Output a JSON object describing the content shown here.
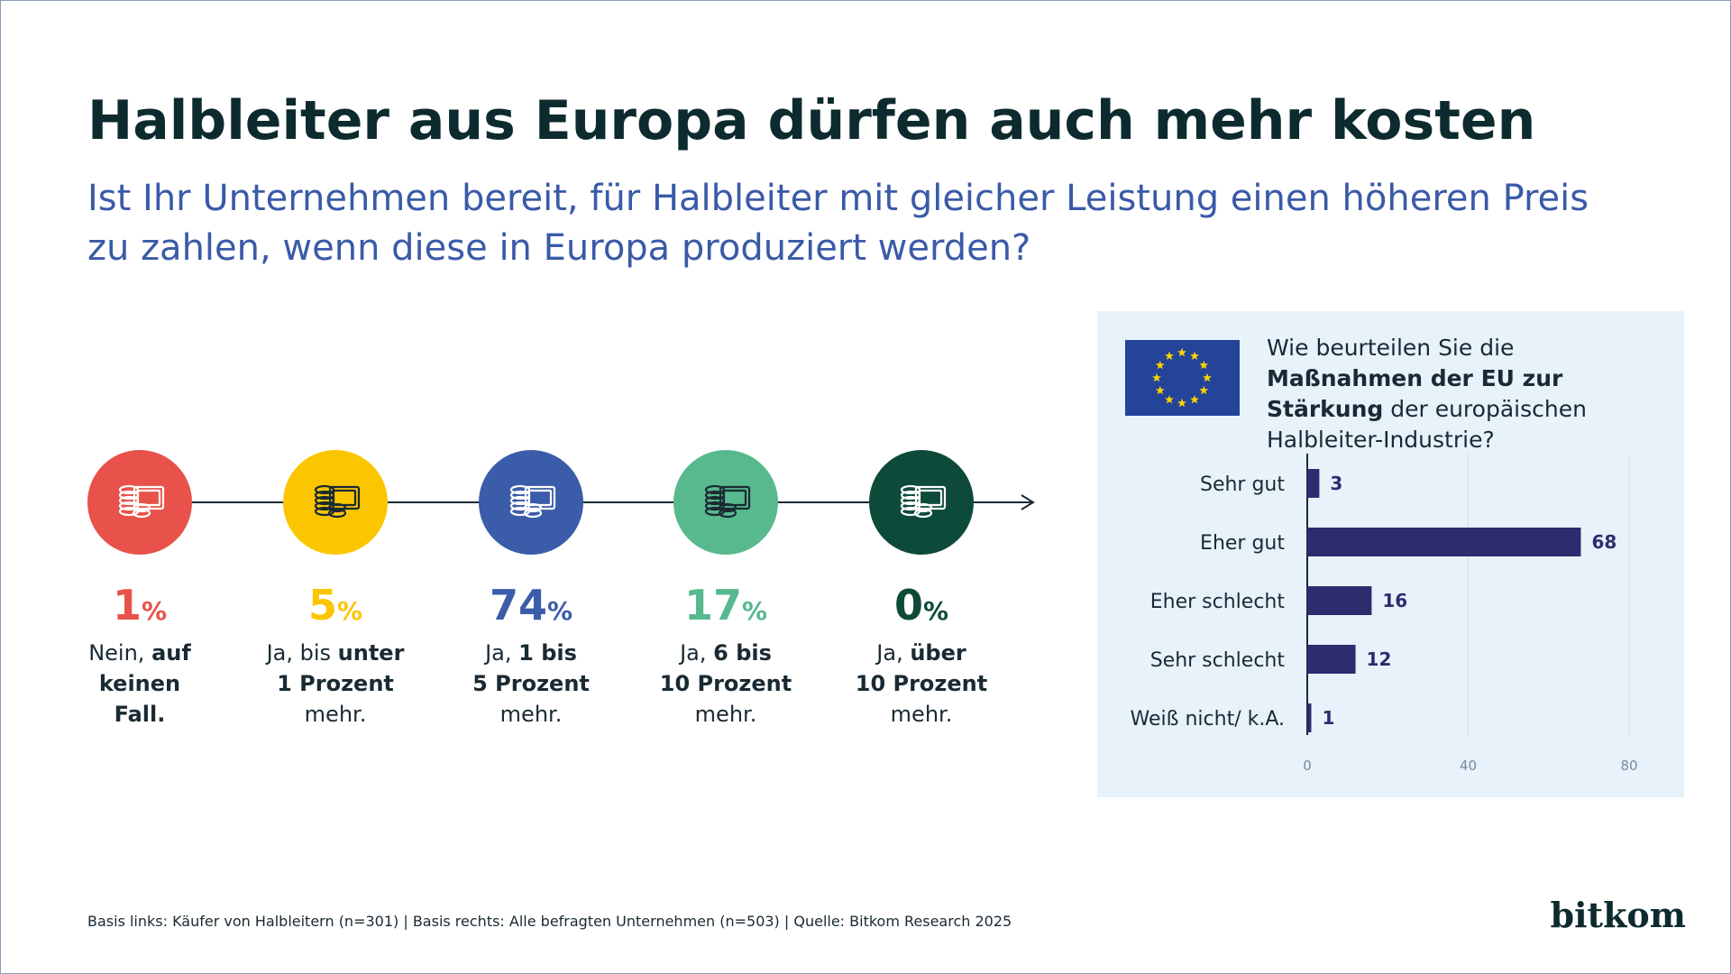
{
  "header": {
    "title": "Halbleiter aus Europa dürfen auch mehr kosten",
    "subtitle_lines": [
      "Ist Ihr Unternehmen bereit, für Halbleiter mit gleicher Leistung einen höheren Preis",
      "zu zahlen, wenn diese in Europa produziert werden?"
    ]
  },
  "left": {
    "unit": "%",
    "items": [
      {
        "value": 1,
        "color": "#e8524a",
        "icon_color": "#ffffff",
        "lines": [
          [
            {
              "text": "Nein, ",
              "bold": false
            },
            {
              "text": "auf",
              "bold": true
            }
          ],
          [
            {
              "text": "keinen",
              "bold": true
            }
          ],
          [
            {
              "text": "Fall.",
              "bold": true
            }
          ]
        ]
      },
      {
        "value": 5,
        "color": "#fbc600",
        "icon_color": "#1a2a33",
        "lines": [
          [
            {
              "text": "Ja, bis ",
              "bold": false
            },
            {
              "text": "unter",
              "bold": true
            }
          ],
          [
            {
              "text": "1 Prozent",
              "bold": true
            }
          ],
          [
            {
              "text": "mehr.",
              "bold": false
            }
          ]
        ]
      },
      {
        "value": 74,
        "color": "#3b5ca8",
        "icon_color": "#ffffff",
        "lines": [
          [
            {
              "text": "Ja, ",
              "bold": false
            },
            {
              "text": "1 bis",
              "bold": true
            }
          ],
          [
            {
              "text": "5 Prozent",
              "bold": true
            }
          ],
          [
            {
              "text": "mehr.",
              "bold": false
            }
          ]
        ]
      },
      {
        "value": 17,
        "color": "#57b98d",
        "icon_color": "#1a2a33",
        "lines": [
          [
            {
              "text": "Ja, ",
              "bold": false
            },
            {
              "text": "6 bis",
              "bold": true
            }
          ],
          [
            {
              "text": "10 Prozent",
              "bold": true
            }
          ],
          [
            {
              "text": "mehr.",
              "bold": false
            }
          ]
        ]
      },
      {
        "value": 0,
        "color": "#0e4a3a",
        "icon_color": "#ffffff",
        "lines": [
          [
            {
              "text": "Ja, ",
              "bold": false
            },
            {
              "text": "über",
              "bold": true
            }
          ],
          [
            {
              "text": "10 Prozent",
              "bold": true
            }
          ],
          [
            {
              "text": "mehr.",
              "bold": false
            }
          ]
        ]
      }
    ]
  },
  "chart_data": {
    "type": "bar",
    "orientation": "horizontal",
    "question": [
      {
        "text": "Wie beurteilen Sie die ",
        "bold": false
      },
      {
        "text": "Maßnahmen der EU zur Stärkung",
        "bold": true
      },
      {
        "text": " der europäischen Halbleiter-Industrie?",
        "bold": false
      }
    ],
    "categories": [
      "Sehr gut",
      "Eher gut",
      "Eher schlecht",
      "Sehr schlecht",
      "Weiß nicht/ k.A."
    ],
    "values": [
      3,
      68,
      16,
      12,
      1
    ],
    "color": "#2b2d6e",
    "xlim": [
      0,
      80
    ],
    "xticks": [
      0,
      40,
      80
    ],
    "grid": true
  },
  "footer": {
    "source": "Basis links: Käufer von Halbleitern (n=301) | Basis rechts: Alle befragten Unternehmen (n=503) | Quelle: Bitkom Research 2025",
    "logo": "bitkom"
  }
}
